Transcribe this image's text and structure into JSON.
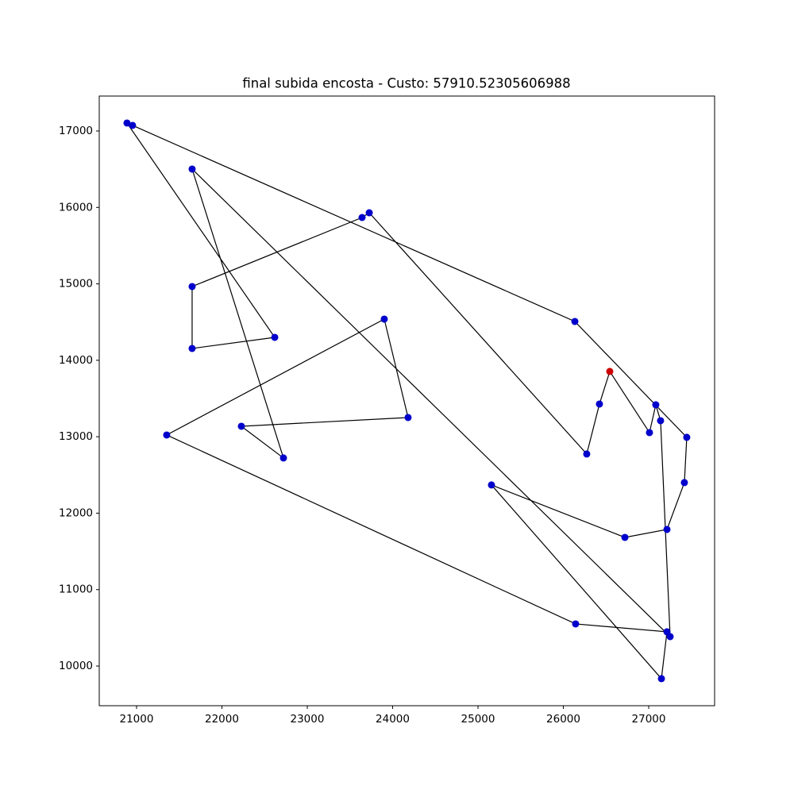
{
  "chart_data": {
    "type": "tour",
    "title": "final subida encosta - Custo: 57910.52305606988",
    "x": [
      26544,
      26423,
      26274,
      23726,
      23642,
      21651,
      21651,
      22619,
      20888,
      20953,
      26135,
      27446,
      27418,
      27214,
      26721,
      25158,
      27149,
      27214,
      26144,
      21353,
      23902,
      24181,
      22228,
      22721,
      21651,
      27251,
      27139,
      27083,
      27009
    ],
    "y": [
      13854,
      13428,
      12774,
      15930,
      15868,
      14965,
      14155,
      14300,
      17104,
      17073,
      14508,
      12992,
      12400,
      11787,
      11683,
      12369,
      9835,
      10448,
      10551,
      13023,
      14539,
      13251,
      13137,
      12722,
      16502,
      10385,
      13210,
      13418,
      13054
    ],
    "closed": true,
    "line_color": "#000000",
    "marker_color": "#0000cc",
    "start_color": "#cc0000",
    "xlim": [
      20563,
      27772
    ],
    "ylim": [
      9481,
      17457
    ],
    "xticks": [
      21000,
      22000,
      23000,
      24000,
      25000,
      26000,
      27000
    ],
    "yticks": [
      10000,
      11000,
      12000,
      13000,
      14000,
      15000,
      16000,
      17000
    ]
  }
}
